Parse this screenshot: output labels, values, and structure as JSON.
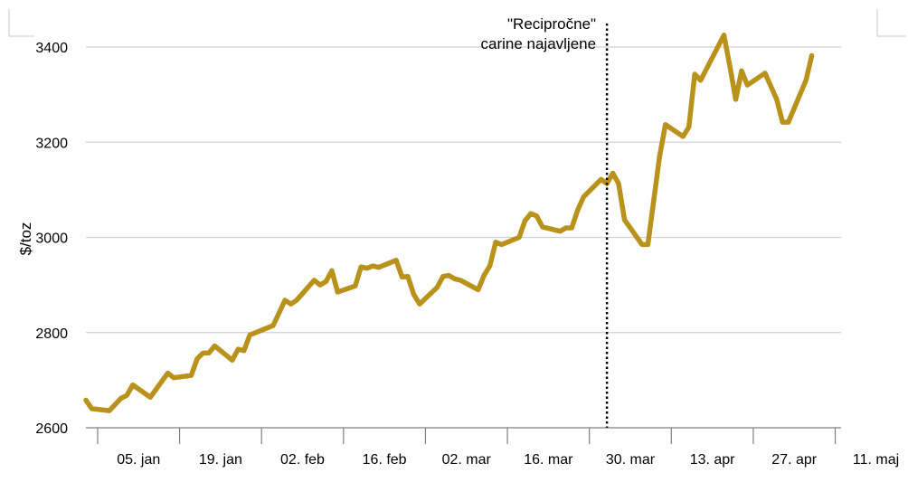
{
  "chart_data": {
    "type": "line",
    "title": "",
    "xlabel": "",
    "ylabel": "$/toz",
    "ylim": [
      2600,
      3400
    ],
    "yticks": [
      2600,
      2800,
      3000,
      3200,
      3400
    ],
    "xlim": [
      "2025-01-03",
      "2025-05-12"
    ],
    "x_ticks": [
      {
        "date": "2025-01-05",
        "label": "05. jan"
      },
      {
        "date": "2025-01-19",
        "label": "19. jan"
      },
      {
        "date": "2025-02-02",
        "label": "02. feb"
      },
      {
        "date": "2025-02-16",
        "label": "16. feb"
      },
      {
        "date": "2025-03-02",
        "label": "02. mar"
      },
      {
        "date": "2025-03-16",
        "label": "16. mar"
      },
      {
        "date": "2025-03-30",
        "label": "30. mar"
      },
      {
        "date": "2025-04-13",
        "label": "13. apr"
      },
      {
        "date": "2025-04-27",
        "label": "27. apr"
      },
      {
        "date": "2025-05-11",
        "label": "11. maj"
      }
    ],
    "grid": "horizontal",
    "legend": "none",
    "colors": {
      "line": "#b8921a",
      "grid": "#d0d0d0",
      "axis": "#7f7f7f",
      "marker": "#000000"
    },
    "annotation": {
      "date": "2025-04-02",
      "lines": [
        "\"Recipročne\"",
        "carine najavljene"
      ],
      "style": "dotted-vertical"
    },
    "series": [
      {
        "name": "",
        "points": [
          [
            "2025-01-03",
            2658
          ],
          [
            "2025-01-04",
            2640
          ],
          [
            "2025-01-07",
            2636
          ],
          [
            "2025-01-09",
            2662
          ],
          [
            "2025-01-10",
            2668
          ],
          [
            "2025-01-11",
            2690
          ],
          [
            "2025-01-14",
            2664
          ],
          [
            "2025-01-17",
            2715
          ],
          [
            "2025-01-18",
            2705
          ],
          [
            "2025-01-21",
            2710
          ],
          [
            "2025-01-22",
            2745
          ],
          [
            "2025-01-23",
            2757
          ],
          [
            "2025-01-24",
            2757
          ],
          [
            "2025-01-25",
            2772
          ],
          [
            "2025-01-28",
            2742
          ],
          [
            "2025-01-29",
            2765
          ],
          [
            "2025-01-30",
            2762
          ],
          [
            "2025-01-31",
            2795
          ],
          [
            "2025-02-04",
            2815
          ],
          [
            "2025-02-06",
            2868
          ],
          [
            "2025-02-07",
            2860
          ],
          [
            "2025-02-08",
            2868
          ],
          [
            "2025-02-11",
            2910
          ],
          [
            "2025-02-12",
            2900
          ],
          [
            "2025-02-13",
            2907
          ],
          [
            "2025-02-14",
            2930
          ],
          [
            "2025-02-15",
            2885
          ],
          [
            "2025-02-18",
            2898
          ],
          [
            "2025-02-19",
            2938
          ],
          [
            "2025-02-20",
            2935
          ],
          [
            "2025-02-21",
            2940
          ],
          [
            "2025-02-22",
            2937
          ],
          [
            "2025-02-25",
            2952
          ],
          [
            "2025-02-26",
            2917
          ],
          [
            "2025-02-27",
            2918
          ],
          [
            "2025-02-28",
            2880
          ],
          [
            "2025-03-01",
            2860
          ],
          [
            "2025-03-04",
            2895
          ],
          [
            "2025-03-05",
            2918
          ],
          [
            "2025-03-06",
            2920
          ],
          [
            "2025-03-07",
            2913
          ],
          [
            "2025-03-08",
            2910
          ],
          [
            "2025-03-11",
            2890
          ],
          [
            "2025-03-12",
            2920
          ],
          [
            "2025-03-13",
            2940
          ],
          [
            "2025-03-14",
            2990
          ],
          [
            "2025-03-15",
            2985
          ],
          [
            "2025-03-18",
            3000
          ],
          [
            "2025-03-19",
            3035
          ],
          [
            "2025-03-20",
            3050
          ],
          [
            "2025-03-21",
            3045
          ],
          [
            "2025-03-22",
            3022
          ],
          [
            "2025-03-25",
            3013
          ],
          [
            "2025-03-26",
            3020
          ],
          [
            "2025-03-27",
            3020
          ],
          [
            "2025-03-28",
            3057
          ],
          [
            "2025-03-29",
            3085
          ],
          [
            "2025-04-01",
            3122
          ],
          [
            "2025-04-02",
            3113
          ],
          [
            "2025-04-03",
            3135
          ],
          [
            "2025-04-04",
            3113
          ],
          [
            "2025-04-05",
            3037
          ],
          [
            "2025-04-08",
            2985
          ],
          [
            "2025-04-09",
            2985
          ],
          [
            "2025-04-11",
            3170
          ],
          [
            "2025-04-12",
            3237
          ],
          [
            "2025-04-15",
            3212
          ],
          [
            "2025-04-16",
            3232
          ],
          [
            "2025-04-17",
            3343
          ],
          [
            "2025-04-18",
            3330
          ],
          [
            "2025-04-22",
            3425
          ],
          [
            "2025-04-23",
            3360
          ],
          [
            "2025-04-24",
            3290
          ],
          [
            "2025-04-25",
            3350
          ],
          [
            "2025-04-26",
            3320
          ],
          [
            "2025-04-29",
            3345
          ],
          [
            "2025-05-01",
            3290
          ],
          [
            "2025-05-02",
            3242
          ],
          [
            "2025-05-03",
            3242
          ],
          [
            "2025-05-06",
            3330
          ],
          [
            "2025-05-07",
            3382
          ]
        ]
      }
    ]
  }
}
